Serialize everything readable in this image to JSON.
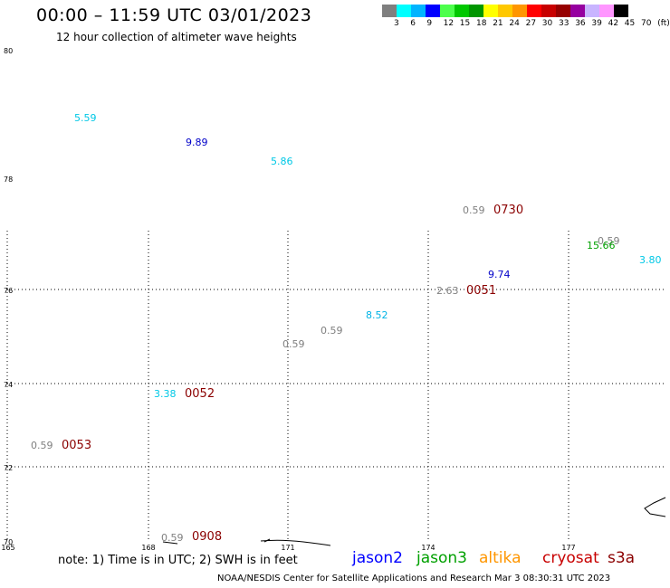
{
  "header": {
    "title": "00:00 – 11:59 UTC 03/01/2023",
    "subtitle": "12 hour collection of altimeter wave heights"
  },
  "colorbar": {
    "colors": [
      "#7f7f7f",
      "#00ffff",
      "#00b4ff",
      "#0000ff",
      "#4cff4c",
      "#00c800",
      "#009600",
      "#ffff00",
      "#ffc800",
      "#ff9600",
      "#ff0000",
      "#c80000",
      "#960000",
      "#9600a0",
      "#c8b4ff",
      "#ff96ff",
      "#000000"
    ],
    "labels": [
      "3",
      "6",
      "9",
      "12",
      "15",
      "18",
      "21",
      "24",
      "27",
      "30",
      "33",
      "36",
      "39",
      "42",
      "45",
      "70",
      "(ft)"
    ]
  },
  "axes": {
    "lat_labels": [
      "80",
      "78",
      "76",
      "74",
      "72",
      "70"
    ],
    "lon_labels": [
      "165",
      "168",
      "171",
      "174",
      "177"
    ]
  },
  "observations": [
    {
      "text": "5.59",
      "color": "#00c8e6"
    },
    {
      "text": "9.89",
      "color": "#0000c8"
    },
    {
      "text": "5.86",
      "color": "#00c8e6"
    },
    {
      "text": "0.59",
      "color": "#7f7f7f"
    },
    {
      "text": "0730",
      "color": "#8b0000"
    },
    {
      "text": "0.59",
      "color": "#7f7f7f"
    },
    {
      "text": "15.66",
      "color": "#00a000"
    },
    {
      "text": "3.80",
      "color": "#00c8e6"
    },
    {
      "text": "9.74",
      "color": "#0000c8"
    },
    {
      "text": "2.63",
      "color": "#7f7f7f"
    },
    {
      "text": "0051",
      "color": "#8b0000"
    },
    {
      "text": "8.52",
      "color": "#00b4e6"
    },
    {
      "text": "0.59",
      "color": "#7f7f7f"
    },
    {
      "text": "0.59",
      "color": "#7f7f7f"
    },
    {
      "text": "3.38",
      "color": "#00c8e6"
    },
    {
      "text": "0052",
      "color": "#8b0000"
    },
    {
      "text": "0.59",
      "color": "#7f7f7f"
    },
    {
      "text": "0053",
      "color": "#8b0000"
    },
    {
      "text": "0.59",
      "color": "#7f7f7f"
    },
    {
      "text": "0908",
      "color": "#8b0000"
    }
  ],
  "footer": {
    "note": "note: 1) Time is in UTC; 2) SWH is in feet",
    "legend": [
      {
        "label": "jason2",
        "color": "#0000ff"
      },
      {
        "label": "jason3",
        "color": "#00a000"
      },
      {
        "label": "altika",
        "color": "#ff9600"
      },
      {
        "label": "cryosat",
        "color": "#c80000"
      },
      {
        "label": "s3a",
        "color": "#8b0000"
      }
    ],
    "credit": "NOAA/NESDIS Center for Satellite Applications and Research   Mar  3 08:30:31 UTC 2023"
  }
}
